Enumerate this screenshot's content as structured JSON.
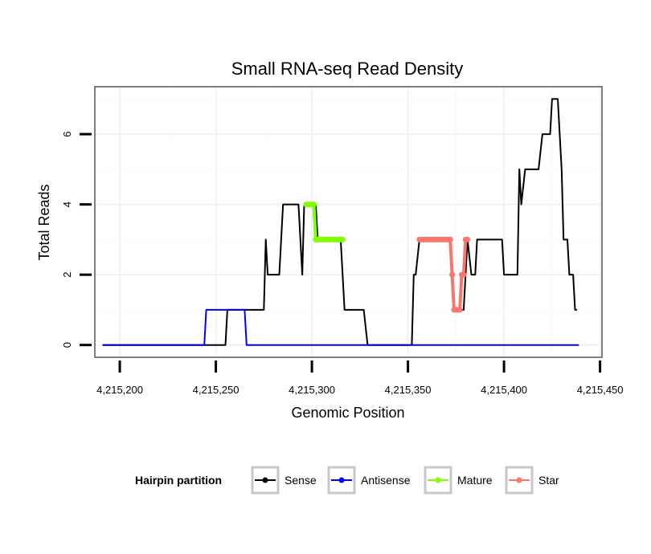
{
  "chart_data": {
    "type": "line",
    "title": "Small RNA-seq Read Density",
    "xlabel": "Genomic Position",
    "ylabel": "Total Reads",
    "xlim": [
      4215187,
      4215451
    ],
    "ylim": [
      -0.35,
      7.35
    ],
    "x_ticks": [
      4215200,
      4215250,
      4215300,
      4215350,
      4215400,
      4215450
    ],
    "x_tick_labels": [
      "4,215,200",
      "4,215,250",
      "4,215,300",
      "4,215,350",
      "4,215,400",
      "4,215,450"
    ],
    "y_ticks": [
      0,
      2,
      4,
      6
    ],
    "y_tick_labels": [
      "0",
      "2",
      "4",
      "6"
    ],
    "grid": true,
    "legend": {
      "title": "Hairpin partition",
      "position": "bottom",
      "entries": [
        {
          "name": "Sense",
          "color": "#000000"
        },
        {
          "name": "Antisense",
          "color": "#0000ff"
        },
        {
          "name": "Mature",
          "color": "#7fff00"
        },
        {
          "name": "Star",
          "color": "#f8766d"
        }
      ]
    },
    "series": [
      {
        "name": "Sense",
        "color": "#000000",
        "points": [
          [
            4215191,
            0
          ],
          [
            4215255,
            0
          ],
          [
            4215256,
            1
          ],
          [
            4215275,
            1
          ],
          [
            4215276,
            3
          ],
          [
            4215277,
            2
          ],
          [
            4215283,
            2
          ],
          [
            4215285,
            4
          ],
          [
            4215293,
            4
          ],
          [
            4215295,
            2
          ],
          [
            4215296,
            4
          ],
          [
            4215302,
            4
          ],
          [
            4215303,
            3
          ],
          [
            4215315,
            3
          ],
          [
            4215317,
            1
          ],
          [
            4215327,
            1
          ],
          [
            4215329,
            0
          ],
          [
            4215352,
            0
          ],
          [
            4215353,
            2
          ],
          [
            4215354,
            2
          ],
          [
            4215356,
            3
          ],
          [
            4215372,
            3
          ],
          [
            4215373,
            2
          ],
          [
            4215374,
            1
          ],
          [
            4215379,
            1
          ],
          [
            4215380,
            2
          ],
          [
            4215381,
            3
          ],
          [
            4215383,
            2
          ],
          [
            4215385,
            2
          ],
          [
            4215386,
            3
          ],
          [
            4215399,
            3
          ],
          [
            4215400,
            2
          ],
          [
            4215407,
            2
          ],
          [
            4215408,
            5
          ],
          [
            4215409,
            4
          ],
          [
            4215411,
            5
          ],
          [
            4215418,
            5
          ],
          [
            4215420,
            6
          ],
          [
            4215424,
            6
          ],
          [
            4215425,
            7
          ],
          [
            4215428,
            7
          ],
          [
            4215430,
            5
          ],
          [
            4215431,
            3
          ],
          [
            4215433,
            3
          ],
          [
            4215434,
            2
          ],
          [
            4215436,
            2
          ],
          [
            4215437,
            1
          ],
          [
            4215438,
            1
          ]
        ]
      },
      {
        "name": "Antisense",
        "color": "#0000ff",
        "points": [
          [
            4215191,
            0
          ],
          [
            4215244,
            0
          ],
          [
            4215245,
            1
          ],
          [
            4215265,
            1
          ],
          [
            4215266,
            0
          ],
          [
            4215439,
            0
          ]
        ]
      },
      {
        "name": "Mature",
        "color": "#7fff00",
        "points": [
          [
            4215297,
            4
          ],
          [
            4215298,
            4
          ],
          [
            4215299,
            4
          ],
          [
            4215300,
            4
          ],
          [
            4215301,
            4
          ],
          [
            4215302,
            3
          ],
          [
            4215303,
            3
          ],
          [
            4215304,
            3
          ],
          [
            4215305,
            3
          ],
          [
            4215306,
            3
          ],
          [
            4215307,
            3
          ],
          [
            4215308,
            3
          ],
          [
            4215309,
            3
          ],
          [
            4215310,
            3
          ],
          [
            4215311,
            3
          ],
          [
            4215312,
            3
          ],
          [
            4215313,
            3
          ],
          [
            4215314,
            3
          ],
          [
            4215315,
            3
          ],
          [
            4215316,
            3
          ]
        ]
      },
      {
        "name": "Star",
        "color": "#f8766d",
        "points": [
          [
            4215356,
            3
          ],
          [
            4215357,
            3
          ],
          [
            4215358,
            3
          ],
          [
            4215359,
            3
          ],
          [
            4215360,
            3
          ],
          [
            4215361,
            3
          ],
          [
            4215362,
            3
          ],
          [
            4215363,
            3
          ],
          [
            4215364,
            3
          ],
          [
            4215365,
            3
          ],
          [
            4215366,
            3
          ],
          [
            4215367,
            3
          ],
          [
            4215368,
            3
          ],
          [
            4215369,
            3
          ],
          [
            4215370,
            3
          ],
          [
            4215371,
            3
          ],
          [
            4215372,
            3
          ],
          [
            4215373,
            2
          ],
          [
            4215374,
            1
          ],
          [
            4215375,
            1
          ],
          [
            4215376,
            1
          ],
          [
            4215377,
            1
          ],
          [
            4215378,
            2
          ],
          [
            4215379,
            2
          ],
          [
            4215380,
            3
          ],
          [
            4215381,
            3
          ]
        ]
      }
    ]
  }
}
